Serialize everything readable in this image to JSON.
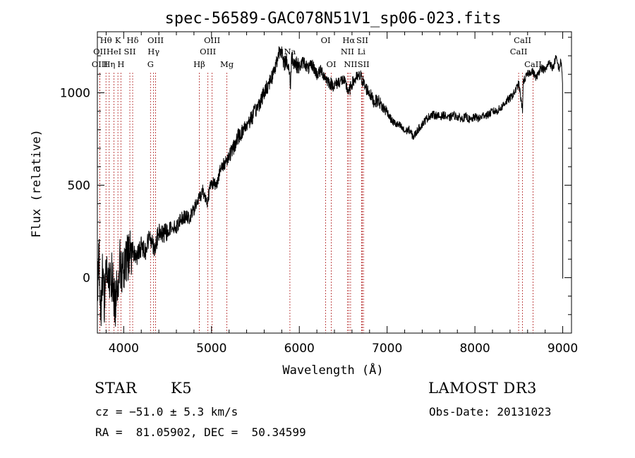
{
  "chart_data": {
    "type": "line",
    "title": "spec-56589-GAC078N51V1_sp06-023.fits",
    "xlabel": "Wavelength (Å)",
    "ylabel": "Flux (relative)",
    "xlim": [
      3700,
      9100
    ],
    "ylim": [
      -300,
      1330
    ],
    "x_ticks": [
      4000,
      5000,
      6000,
      7000,
      8000,
      9000
    ],
    "y_ticks": [
      0,
      500,
      1000
    ],
    "series": [
      {
        "name": "flux",
        "x": [
          3700,
          3720,
          3740,
          3760,
          3780,
          3800,
          3830,
          3860,
          3900,
          3950,
          4000,
          4050,
          4100,
          4150,
          4200,
          4250,
          4300,
          4350,
          4400,
          4450,
          4500,
          4550,
          4600,
          4650,
          4700,
          4750,
          4800,
          4850,
          4900,
          4950,
          5000,
          5050,
          5100,
          5150,
          5200,
          5250,
          5300,
          5350,
          5400,
          5450,
          5500,
          5550,
          5600,
          5650,
          5700,
          5750,
          5780,
          5800,
          5820,
          5850,
          5890,
          5900,
          5910,
          5950,
          6000,
          6050,
          6100,
          6150,
          6200,
          6250,
          6300,
          6350,
          6400,
          6450,
          6500,
          6550,
          6563,
          6600,
          6650,
          6700,
          6750,
          6800,
          6850,
          6900,
          6950,
          7000,
          7050,
          7100,
          7150,
          7200,
          7250,
          7300,
          7350,
          7400,
          7450,
          7500,
          7550,
          7600,
          7650,
          7700,
          7750,
          7800,
          7850,
          7900,
          7950,
          8000,
          8050,
          8100,
          8150,
          8200,
          8250,
          8300,
          8350,
          8400,
          8450,
          8500,
          8542,
          8550,
          8600,
          8650,
          8700,
          8750,
          8800,
          8850,
          8880,
          8900,
          8920,
          8940,
          8960,
          8980,
          8995,
          9000,
          9000
        ],
        "y": [
          -30,
          120,
          -200,
          50,
          -120,
          80,
          -60,
          30,
          -150,
          80,
          10,
          120,
          150,
          110,
          170,
          150,
          230,
          160,
          240,
          230,
          250,
          280,
          270,
          320,
          330,
          320,
          370,
          420,
          470,
          410,
          520,
          500,
          580,
          620,
          660,
          700,
          760,
          790,
          830,
          860,
          900,
          950,
          1000,
          1050,
          1100,
          1180,
          1250,
          1220,
          1150,
          1180,
          1120,
          1000,
          1200,
          1160,
          1140,
          1170,
          1130,
          1150,
          1100,
          1120,
          1080,
          1050,
          1040,
          1060,
          1070,
          1020,
          1000,
          1050,
          1080,
          1090,
          1030,
          1000,
          950,
          960,
          920,
          900,
          850,
          830,
          820,
          790,
          800,
          760,
          800,
          830,
          860,
          880,
          880,
          870,
          880,
          860,
          880,
          870,
          860,
          870,
          850,
          870,
          860,
          880,
          880,
          900,
          900,
          920,
          950,
          970,
          1000,
          1050,
          900,
          1060,
          1100,
          1120,
          1080,
          1140,
          1120,
          1170,
          1130,
          1150,
          1190,
          1160,
          1130,
          1170,
          1100,
          1000,
          -10
        ]
      }
    ],
    "spectral_lines": [
      {
        "label": "Hθ",
        "x": 3798,
        "row": 1
      },
      {
        "label": "OII",
        "x": 3727,
        "row": 2
      },
      {
        "label": "OIII",
        "x": 3727,
        "row": 3
      },
      {
        "label": "K",
        "x": 3934,
        "row": 1
      },
      {
        "label": "HeI",
        "x": 3889,
        "row": 2
      },
      {
        "label": "Hη",
        "x": 3835,
        "row": 3
      },
      {
        "label": "Hδ",
        "x": 4102,
        "row": 1
      },
      {
        "label": "SII",
        "x": 4070,
        "row": 2
      },
      {
        "label": "H",
        "x": 3968,
        "row": 3
      },
      {
        "label": "OIII",
        "x": 4363,
        "row": 1
      },
      {
        "label": "Hγ",
        "x": 4340,
        "row": 2
      },
      {
        "label": "G",
        "x": 4305,
        "row": 3
      },
      {
        "label": "OIII",
        "x": 5007,
        "row": 1
      },
      {
        "label": "OIII",
        "x": 4959,
        "row": 2
      },
      {
        "label": "Hβ",
        "x": 4861,
        "row": 3
      },
      {
        "label": "Mg",
        "x": 5175,
        "row": 3
      },
      {
        "label": "Na",
        "x": 5893,
        "row": 2
      },
      {
        "label": "OI",
        "x": 6300,
        "row": 1
      },
      {
        "label": "OI",
        "x": 6364,
        "row": 3
      },
      {
        "label": "Hα",
        "x": 6563,
        "row": 1
      },
      {
        "label": "NII",
        "x": 6548,
        "row": 2
      },
      {
        "label": "NII",
        "x": 6584,
        "row": 3
      },
      {
        "label": "SII",
        "x": 6717,
        "row": 1
      },
      {
        "label": "Li",
        "x": 6708,
        "row": 2
      },
      {
        "label": "SII",
        "x": 6731,
        "row": 3
      },
      {
        "label": "CaII",
        "x": 8542,
        "row": 1
      },
      {
        "label": "CaII",
        "x": 8498,
        "row": 2
      },
      {
        "label": "CaII",
        "x": 8662,
        "row": 3
      }
    ]
  },
  "info": {
    "object_class": "STAR",
    "subclass": "K5",
    "survey": "LAMOST DR3",
    "redshift": "cz = −51.0 ± 5.3 km/s",
    "obs_date": "Obs-Date: 20131023",
    "coordinates": "RA =  81.05902, DEC =  50.34599"
  }
}
